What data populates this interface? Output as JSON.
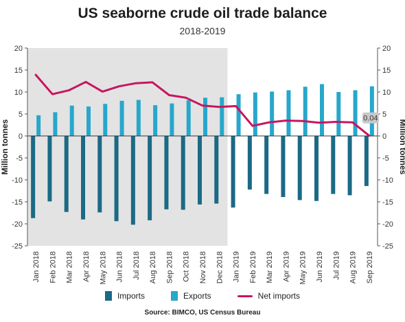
{
  "header": {
    "title": "US seaborne crude oil trade balance",
    "subtitle": "2018-2019"
  },
  "legend": {
    "imports": "Imports",
    "exports": "Exports",
    "net": "Net imports"
  },
  "source": "Source: BIMCO, US Census Bureau",
  "colors": {
    "imports": "#1b6a86",
    "exports": "#27a7cc",
    "net": "#c8155f",
    "shade": "#e3e3e3",
    "callout": "#c9c9c9"
  },
  "chart_data": {
    "type": "bar",
    "title": "US seaborne crude oil trade balance",
    "subtitle": "2018-2019",
    "categories": [
      "Jan 2018",
      "Feb 2018",
      "Mar 2018",
      "Apr 2018",
      "May 2018",
      "Jun 2018",
      "Jul 2018",
      "Aug 2018",
      "Sep 2018",
      "Oct 2018",
      "Nov 2018",
      "Dec 2018",
      "Jan 2019",
      "Feb 2019",
      "Mar 2019",
      "Apr 2019",
      "May 2019",
      "Jun 2019",
      "Jul 2019",
      "Aug 2019",
      "Sep 2019"
    ],
    "series": [
      {
        "name": "Imports",
        "type": "bar",
        "values": [
          -18.7,
          -14.9,
          -17.3,
          -19.0,
          -17.4,
          -19.4,
          -20.2,
          -19.2,
          -16.7,
          -16.8,
          -15.6,
          -15.4,
          -16.3,
          -12.2,
          -13.2,
          -13.9,
          -14.6,
          -14.8,
          -13.2,
          -13.5,
          -11.4
        ]
      },
      {
        "name": "Exports",
        "type": "bar",
        "values": [
          4.7,
          5.4,
          6.9,
          6.7,
          7.3,
          8.0,
          8.2,
          7.0,
          7.4,
          8.1,
          8.7,
          8.8,
          9.5,
          9.9,
          10.1,
          10.4,
          11.2,
          11.8,
          10.0,
          10.4,
          11.3
        ]
      },
      {
        "name": "Net imports",
        "type": "line",
        "values": [
          13.9,
          9.5,
          10.4,
          12.3,
          10.1,
          11.3,
          12.0,
          12.2,
          9.3,
          8.7,
          6.9,
          6.6,
          6.8,
          2.3,
          3.1,
          3.5,
          3.4,
          3.0,
          3.2,
          3.1,
          0.04
        ]
      }
    ],
    "xlabel": "",
    "ylabel": "Million tonnes",
    "ylim": [
      -25,
      20
    ],
    "yticks": [
      20,
      15,
      10,
      5,
      0,
      -5,
      -10,
      -15,
      -20,
      -25
    ],
    "shaded_period": [
      "Jan 2018",
      "Dec 2018"
    ],
    "annotation": {
      "category": "Sep 2019",
      "series": "Net imports",
      "text": "0.04"
    },
    "grid": false,
    "legend_position": "bottom"
  }
}
